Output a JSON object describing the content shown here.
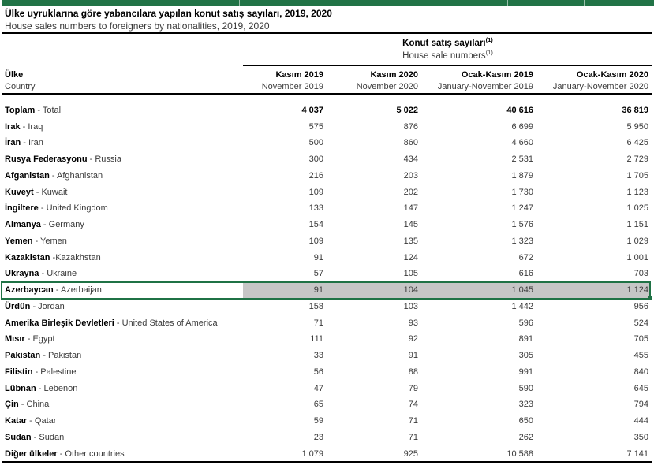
{
  "page": {
    "title_tr": "Ülke uyruklarına göre yabancılara yapılan konut satış sayıları, 2019, 2020",
    "title_en": "House sales numbers to foreigners by nationalities, 2019, 2020"
  },
  "table": {
    "footnote_marker": "(1)",
    "group_header": {
      "tr": "Konut satış sayıları",
      "en": "House sale numbers"
    },
    "stub_header": {
      "tr": "Ülke",
      "en": "Country"
    },
    "columns": [
      {
        "tr": "Kasım 2019",
        "en": "November 2019"
      },
      {
        "tr": "Kasım 2020",
        "en": "November 2020"
      },
      {
        "tr": "Ocak-Kasım 2019",
        "en": "January-November 2019"
      },
      {
        "tr": "Ocak-Kasım 2020",
        "en": "January-November 2020"
      }
    ],
    "rows": [
      {
        "tr": "Toplam",
        "sep": " - ",
        "en": "Total",
        "values": [
          "4 037",
          "5 022",
          "40 616",
          "36 819"
        ],
        "bold": true
      },
      {
        "tr": "Irak",
        "sep": " - ",
        "en": "Iraq",
        "values": [
          "575",
          "876",
          "6 699",
          "5 950"
        ]
      },
      {
        "tr": "İran",
        "sep": " - ",
        "en": "Iran",
        "values": [
          "500",
          "860",
          "4 660",
          "6 425"
        ]
      },
      {
        "tr": "Rusya Federasyonu",
        "sep": " - ",
        "en": "Russia",
        "values": [
          "300",
          "434",
          "2 531",
          "2 729"
        ]
      },
      {
        "tr": "Afganistan",
        "sep": " - ",
        "en": "Afghanistan",
        "values": [
          "216",
          "203",
          "1 879",
          "1 705"
        ]
      },
      {
        "tr": "Kuveyt",
        "sep": " - ",
        "en": "Kuwait",
        "values": [
          "109",
          "202",
          "1 730",
          "1 123"
        ]
      },
      {
        "tr": "İngiltere",
        "sep": " - ",
        "en": "United Kingdom",
        "values": [
          "133",
          "147",
          "1 247",
          "1 025"
        ]
      },
      {
        "tr": "Almanya",
        "sep": " - ",
        "en": "Germany",
        "values": [
          "154",
          "145",
          "1 576",
          "1 151"
        ]
      },
      {
        "tr": "Yemen",
        "sep": " - ",
        "en": "Yemen",
        "values": [
          "109",
          "135",
          "1 323",
          "1 029"
        ]
      },
      {
        "tr": "Kazakistan",
        "sep": " -",
        "en": "Kazakhstan",
        "values": [
          "91",
          "124",
          "672",
          "1 001"
        ]
      },
      {
        "tr": "Ukrayna",
        "sep": " - ",
        "en": "Ukraine",
        "values": [
          "57",
          "105",
          "616",
          "703"
        ]
      },
      {
        "tr": "Azerbaycan",
        "sep": " - ",
        "en": "Azerbaijan",
        "values": [
          "91",
          "104",
          "1 045",
          "1 124"
        ],
        "highlighted": true
      },
      {
        "tr": "Ürdün",
        "sep": " - ",
        "en": "Jordan",
        "values": [
          "158",
          "103",
          "1 442",
          "956"
        ]
      },
      {
        "tr": "Amerika Birleşik Devletleri",
        "sep": " - ",
        "en": "United States of America",
        "values": [
          "71",
          "93",
          "596",
          "524"
        ]
      },
      {
        "tr": "Mısır",
        "sep": " - ",
        "en": "Egypt",
        "values": [
          "111",
          "92",
          "891",
          "705"
        ]
      },
      {
        "tr": "Pakistan",
        "sep": " - ",
        "en": "Pakistan",
        "values": [
          "33",
          "91",
          "305",
          "455"
        ]
      },
      {
        "tr": "Filistin",
        "sep": " - ",
        "en": "Palestine",
        "values": [
          "56",
          "88",
          "991",
          "840"
        ]
      },
      {
        "tr": "Lübnan",
        "sep": " - ",
        "en": "Lebenon",
        "values": [
          "47",
          "79",
          "590",
          "645"
        ]
      },
      {
        "tr": "Çin",
        "sep": " - ",
        "en": "China",
        "values": [
          "65",
          "74",
          "323",
          "794"
        ]
      },
      {
        "tr": "Katar",
        "sep": " - ",
        "en": "Qatar",
        "values": [
          "59",
          "71",
          "650",
          "444"
        ]
      },
      {
        "tr": "Sudan",
        "sep": " - ",
        "en": "Sudan",
        "values": [
          "23",
          "71",
          "262",
          "350"
        ]
      },
      {
        "tr": "Diğer ülkeler",
        "sep": " - ",
        "en": "Other countries",
        "values": [
          "1 079",
          "925",
          "10 588",
          "7 141"
        ]
      }
    ]
  },
  "colors": {
    "accent_green": "#217346",
    "selection_green": "#1F7245",
    "highlight_gray": "#C6C6C6",
    "grid_gray": "#D9D9D9"
  }
}
